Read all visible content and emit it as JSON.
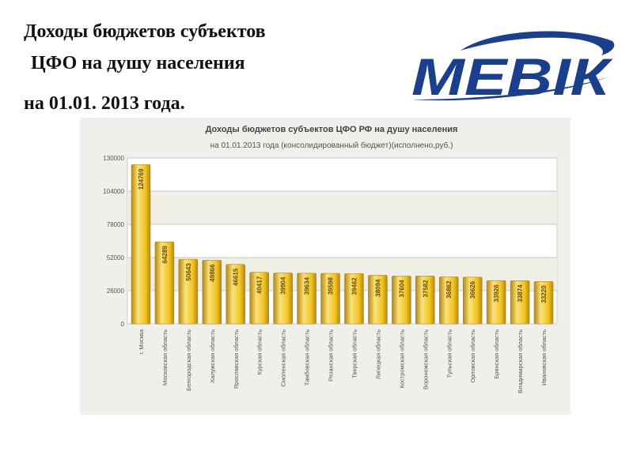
{
  "slide": {
    "title_line1": "Доходы бюджетов субъектов",
    "title_line2": "ЦФО на душу населения",
    "title_line3": "на 01.01. 2013 года.",
    "logo_text": "МЕВІК"
  },
  "colors": {
    "bar_main": "#f2c320",
    "bar_light": "#fbe27a",
    "bar_dark": "#b48712",
    "logo_blue": "#1a3f8c",
    "plot_background": "#ffffff",
    "band_background": "#efefe6",
    "panel_background": "#efefec"
  },
  "chart_data": {
    "type": "bar",
    "title": "Доходы бюджетов субъектов ЦФО РФ на душу населения",
    "subtitle": "на 01.01.2013 года (консолидированный бюджет)(исполнено,руб.)",
    "xlabel": "",
    "ylabel": "",
    "ylim": [
      0,
      130000
    ],
    "yticks": [
      0,
      26000,
      52000,
      78000,
      104000,
      130000
    ],
    "grid": true,
    "legend": "none",
    "categories": [
      "г. Москва",
      "Московская область",
      "Белгородская область",
      "Калужская область",
      "Ярославская область",
      "Курская область",
      "Смоленская область",
      "Тамбовская область",
      "Рязанская область",
      "Тверская область",
      "Липецкая область",
      "Костромская область",
      "Воронежская область",
      "Тульская область",
      "Орловская область",
      "Брянская область",
      "Владимирская область",
      "Ивановская область"
    ],
    "values": [
      124769,
      64289,
      50643,
      49866,
      46615,
      40417,
      39904,
      39634,
      39598,
      39462,
      38094,
      37604,
      37582,
      36862,
      36626,
      33926,
      33874,
      33220
    ]
  }
}
